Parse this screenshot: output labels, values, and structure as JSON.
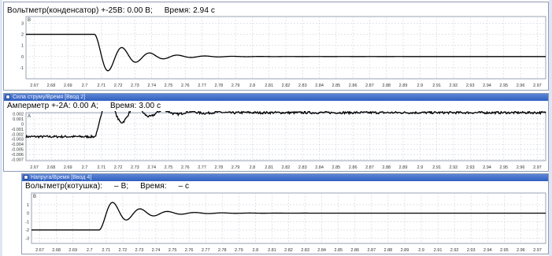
{
  "colors": {
    "titlebar": "#3565c4",
    "grid": "#cfd3dc",
    "trace": "#000000",
    "axis_text": "#333333"
  },
  "panels": [
    {
      "id": "voltmeter-capacitor",
      "window_title": "",
      "channel": "Вольтметр(конденсатор) +-25В:",
      "value": "0.00 В;",
      "time_label": "Время:",
      "time_value": "2.94 с",
      "unit_marker": "В",
      "chart_data": {
        "type": "line",
        "xlim": [
          2.665,
          2.975
        ],
        "ylim": [
          -2,
          3.6
        ],
        "x_ticks": [
          "2.67",
          "2.68",
          "2.69",
          "2.7",
          "2.71",
          "2.72",
          "2.73",
          "2.74",
          "2.75",
          "2.76",
          "2.77",
          "2.78",
          "2.79",
          "2.8",
          "2.81",
          "2.82",
          "2.83",
          "2.84",
          "2.85",
          "2.86",
          "2.87",
          "2.88",
          "2.89",
          "2.9",
          "2.91",
          "2.92",
          "2.93",
          "2.94",
          "2.95",
          "2.96",
          "2.97"
        ],
        "y_ticks": [
          "3",
          "2",
          "1",
          "0",
          "-1"
        ],
        "y_values": [
          3,
          2,
          1,
          0,
          -1
        ],
        "signal": {
          "before": 2,
          "t0": 2.706,
          "amplitude": 2,
          "tau": 0.018,
          "period": 0.0165,
          "phase": 0,
          "noise": 0
        }
      }
    },
    {
      "id": "ammeter",
      "window_title": "Сила струму/Время [Ввод 2]",
      "channel": "Амперметр +-2А:",
      "value": "0.00 А;",
      "time_label": "Время:",
      "time_value": "3.00 с",
      "unit_marker": "А",
      "chart_data": {
        "type": "line",
        "xlim": [
          2.665,
          2.975
        ],
        "ylim": [
          -0.0072,
          0.0022
        ],
        "x_ticks": [
          "2.67",
          "2.68",
          "2.69",
          "2.7",
          "2.71",
          "2.72",
          "2.73",
          "2.74",
          "2.75",
          "2.76",
          "2.77",
          "2.78",
          "2.79",
          "2.8",
          "2.81",
          "2.82",
          "2.83",
          "2.84",
          "2.85",
          "2.86",
          "2.87",
          "2.88",
          "2.89",
          "2.9",
          "2.91",
          "2.92",
          "2.93",
          "2.94",
          "2.95",
          "2.96",
          "2.97"
        ],
        "y_ticks": [
          "0.002",
          "0.001",
          "0",
          "-0.001",
          "-0.002",
          "-0.003",
          "-0.004",
          "-0.005",
          "-0.006",
          "-0.007"
        ],
        "y_values": [
          0.002,
          0.001,
          0,
          -0.001,
          -0.002,
          -0.003,
          -0.004,
          -0.005,
          -0.006,
          -0.007
        ],
        "signal": {
          "before": -0.0025,
          "t0": 2.706,
          "amplitude": -0.0047,
          "tau": 0.018,
          "period": 0.0165,
          "phase": 0,
          "noise": 0.00022
        }
      }
    },
    {
      "id": "voltmeter-coil",
      "window_title": "Напруга/Время [Ввод 4]",
      "channel": "Вольтметр(котушка):",
      "value": "–   В;",
      "time_label": "Время:",
      "time_value": "–   с",
      "unit_marker": "В",
      "chart_data": {
        "type": "line",
        "xlim": [
          2.665,
          2.975
        ],
        "ylim": [
          -3.6,
          2.4
        ],
        "x_ticks": [
          "2.67",
          "2.68",
          "2.69",
          "2.7",
          "2.71",
          "2.72",
          "2.73",
          "2.74",
          "2.75",
          "2.76",
          "2.77",
          "2.78",
          "2.79",
          "2.8",
          "2.81",
          "2.82",
          "2.83",
          "2.84",
          "2.85",
          "2.86",
          "2.87",
          "2.88",
          "2.89",
          "2.9",
          "2.91",
          "2.92",
          "2.93",
          "2.94",
          "2.95",
          "2.96",
          "2.97"
        ],
        "y_ticks": [
          "1",
          "0",
          "-1",
          "-2",
          "-3"
        ],
        "y_values": [
          1,
          0,
          -1,
          -2,
          -3
        ],
        "signal": {
          "before": -2,
          "t0": 2.706,
          "amplitude": -2,
          "tau": 0.018,
          "period": 0.0165,
          "phase": 0,
          "noise": 0
        }
      }
    }
  ]
}
